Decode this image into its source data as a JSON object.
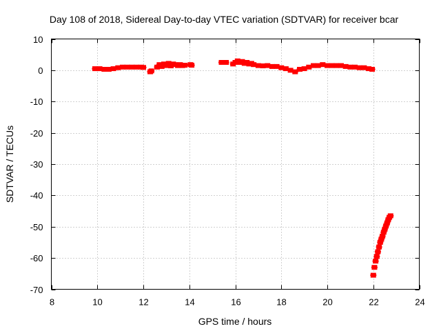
{
  "chart_data": {
    "type": "scatter",
    "title": "Day 108 of 2018, Sidereal Day-to-day VTEC variation (SDTVAR) for receiver bcar",
    "xlabel": "GPS time / hours",
    "ylabel": "SDTVAR / TECUs",
    "xlim": [
      8,
      24
    ],
    "ylim": [
      -70,
      10
    ],
    "xticks": [
      8,
      10,
      12,
      14,
      16,
      18,
      20,
      22,
      24
    ],
    "yticks": [
      10,
      0,
      -10,
      -20,
      -30,
      -40,
      -50,
      -60,
      -70
    ],
    "xtick_labels": [
      "8",
      "10",
      "12",
      "14",
      "16",
      "18",
      "20",
      "22",
      "24"
    ],
    "ytick_labels": [
      "10",
      "0",
      "-10",
      "-20",
      "-30",
      "-40",
      "-50",
      "-60",
      "-70"
    ],
    "grid": true,
    "legend": "none",
    "color": "#ff0000",
    "series": [
      {
        "x": [
          9.9,
          10.1,
          10.3,
          10.5,
          10.7,
          10.9,
          11.1,
          11.3,
          11.5,
          11.7,
          11.9,
          12.0,
          12.3,
          12.35,
          12.6,
          12.7,
          12.8,
          12.9,
          13.0,
          13.1,
          13.2,
          13.3,
          13.4,
          13.5,
          13.6,
          13.7,
          13.8,
          14.05,
          14.1,
          15.4,
          15.5,
          15.6,
          15.9,
          16.0,
          16.1,
          16.2,
          16.3,
          16.4,
          16.5,
          16.6,
          16.7,
          16.8,
          17.0,
          17.2,
          17.4,
          17.6,
          17.8,
          18.0,
          18.2,
          18.4,
          18.6,
          18.8,
          19.0,
          19.2,
          19.4,
          19.6,
          19.8,
          20.0,
          20.2,
          20.4,
          20.6,
          20.8,
          21.0,
          21.2,
          21.4,
          21.6,
          21.8,
          21.95,
          22.0,
          22.05,
          22.1,
          22.15,
          22.2,
          22.25,
          22.3,
          22.35,
          22.4,
          22.45,
          22.5,
          22.55,
          22.6,
          22.65,
          22.7,
          22.75
        ],
        "y": [
          0.5,
          0.5,
          0.3,
          0.3,
          0.5,
          0.8,
          1.0,
          1.0,
          1.0,
          1.0,
          1.0,
          0.9,
          -0.5,
          -0.2,
          1.0,
          1.8,
          1.2,
          2.0,
          1.5,
          2.2,
          1.4,
          2.0,
          1.8,
          1.5,
          1.8,
          1.5,
          1.6,
          1.8,
          1.6,
          2.5,
          2.5,
          2.5,
          2.0,
          2.5,
          3.0,
          2.5,
          2.8,
          2.2,
          2.5,
          2.0,
          2.2,
          1.8,
          1.5,
          1.4,
          1.5,
          1.2,
          1.2,
          0.8,
          0.5,
          0.0,
          -0.5,
          0.3,
          0.5,
          1.0,
          1.5,
          1.5,
          1.8,
          1.5,
          1.5,
          1.5,
          1.5,
          1.2,
          1.0,
          1.0,
          0.8,
          0.8,
          0.5,
          0.3,
          -65.5,
          -63.0,
          -61.0,
          -59.5,
          -58.0,
          -56.5,
          -55.0,
          -54.0,
          -53.0,
          -51.8,
          -50.8,
          -49.8,
          -48.8,
          -47.8,
          -47.0,
          -46.5
        ]
      }
    ]
  }
}
